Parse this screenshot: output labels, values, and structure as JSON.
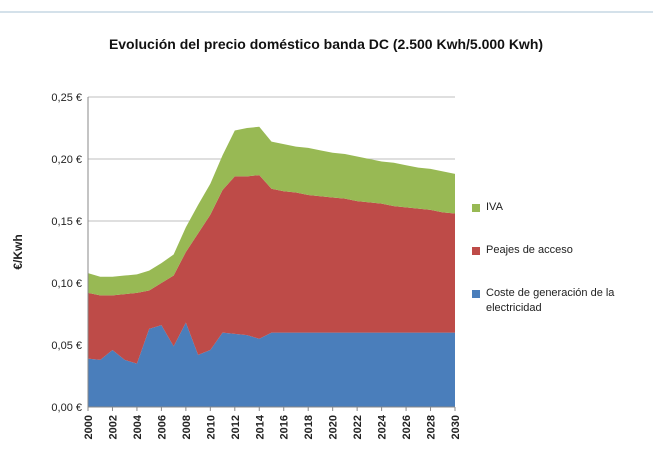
{
  "chart_data": {
    "type": "stacked_area",
    "title": "Evolución del precio doméstico banda DC (2.500 Kwh/5.000 Kwh)",
    "y_label": "€/Kwh",
    "x": [
      2000,
      2001,
      2002,
      2003,
      2004,
      2005,
      2006,
      2007,
      2008,
      2009,
      2010,
      2011,
      2012,
      2013,
      2014,
      2015,
      2016,
      2017,
      2018,
      2019,
      2020,
      2021,
      2022,
      2023,
      2024,
      2025,
      2026,
      2027,
      2028,
      2029,
      2030
    ],
    "xlim": [
      2000,
      2030
    ],
    "xticks": [
      2000,
      2002,
      2004,
      2006,
      2008,
      2010,
      2012,
      2014,
      2016,
      2018,
      2020,
      2022,
      2024,
      2026,
      2028,
      2030
    ],
    "ylim": [
      0,
      0.25
    ],
    "yticks": [
      {
        "value": 0,
        "label": "0,00 €"
      },
      {
        "value": 0.05,
        "label": "0,05 €"
      },
      {
        "value": 0.1,
        "label": "0,10 €"
      },
      {
        "value": 0.15,
        "label": "0,15 €"
      },
      {
        "value": 0.2,
        "label": "0,20 €"
      },
      {
        "value": 0.25,
        "label": "0,25 €"
      }
    ],
    "grid": true,
    "legend": "right",
    "series": [
      {
        "name": "Coste de generación de la electricidad",
        "color": "#4a7ebb",
        "values": [
          0.039,
          0.038,
          0.046,
          0.038,
          0.035,
          0.063,
          0.066,
          0.049,
          0.068,
          0.042,
          0.046,
          0.06,
          0.059,
          0.058,
          0.055,
          0.06,
          0.06,
          0.06,
          0.06,
          0.06,
          0.06,
          0.06,
          0.06,
          0.06,
          0.06,
          0.06,
          0.06,
          0.06,
          0.06,
          0.06,
          0.06
        ]
      },
      {
        "name": "Peajes de acceso",
        "color": "#be4b48",
        "values": [
          0.053,
          0.052,
          0.044,
          0.053,
          0.057,
          0.031,
          0.034,
          0.057,
          0.057,
          0.098,
          0.109,
          0.115,
          0.127,
          0.128,
          0.132,
          0.116,
          0.114,
          0.113,
          0.111,
          0.11,
          0.109,
          0.108,
          0.106,
          0.105,
          0.104,
          0.102,
          0.101,
          0.1,
          0.099,
          0.097,
          0.096
        ]
      },
      {
        "name": "IVA",
        "color": "#98b954",
        "values": [
          0.016,
          0.015,
          0.015,
          0.015,
          0.015,
          0.016,
          0.016,
          0.017,
          0.02,
          0.023,
          0.025,
          0.028,
          0.037,
          0.039,
          0.039,
          0.038,
          0.038,
          0.037,
          0.038,
          0.037,
          0.036,
          0.036,
          0.036,
          0.035,
          0.034,
          0.035,
          0.034,
          0.033,
          0.033,
          0.033,
          0.032
        ]
      }
    ]
  }
}
